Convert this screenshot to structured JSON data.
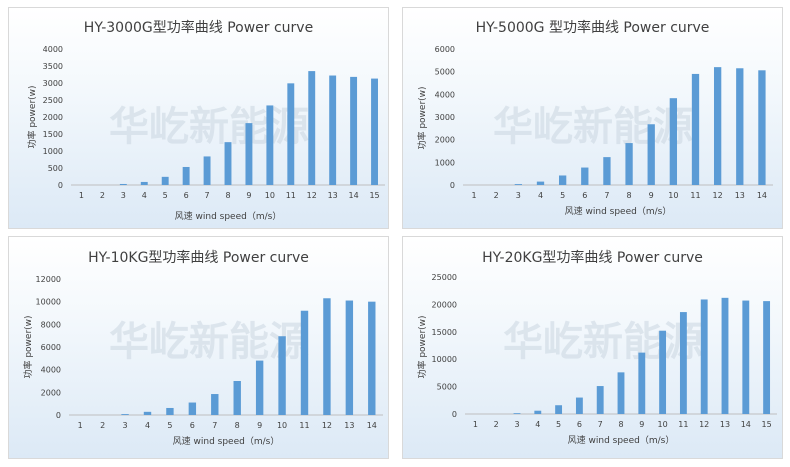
{
  "colors": {
    "bar": "#5b9bd5",
    "text": "#404040",
    "panel_border": "#d9d9d9"
  },
  "watermark": "华屹新能源",
  "chart_data": [
    {
      "type": "bar",
      "title": "HY-3000G型功率曲线 Power curve",
      "xlabel": "风速 wind speed（m/s）",
      "ylabel": "功率 power(w)",
      "categories": [
        "1",
        "2",
        "3",
        "4",
        "5",
        "6",
        "7",
        "8",
        "9",
        "10",
        "11",
        "12",
        "13",
        "14",
        "15"
      ],
      "values": [
        0,
        0,
        30,
        90,
        240,
        530,
        840,
        1260,
        1820,
        2340,
        2990,
        3350,
        3220,
        3180,
        3130
      ],
      "ylim": [
        0,
        4000
      ],
      "yticks": [
        "0",
        "500",
        "1000",
        "1500",
        "2000",
        "2500",
        "3000",
        "3500",
        "4000"
      ],
      "grid": false,
      "legend": "none"
    },
    {
      "type": "bar",
      "title": "HY-5000G 型功率曲线 Power curve",
      "xlabel": "风速 wind speed（m/s）",
      "ylabel": "功率 power(w)",
      "categories": [
        "1",
        "2",
        "3",
        "4",
        "5",
        "6",
        "7",
        "8",
        "9",
        "10",
        "11",
        "12",
        "13",
        "14"
      ],
      "values": [
        0,
        0,
        40,
        150,
        420,
        770,
        1230,
        1850,
        2680,
        3830,
        4900,
        5200,
        5150,
        5060
      ],
      "ylim": [
        0,
        6000
      ],
      "yticks": [
        "0",
        "1000",
        "2000",
        "3000",
        "4000",
        "5000",
        "6000"
      ],
      "grid": false,
      "legend": "none"
    },
    {
      "type": "bar",
      "title": "HY-10KG型功率曲线 Power curve",
      "xlabel": "风速 wind speed（m/s）",
      "ylabel": "功率 power(w)",
      "categories": [
        "1",
        "2",
        "3",
        "4",
        "5",
        "6",
        "7",
        "8",
        "9",
        "10",
        "11",
        "12",
        "13",
        "14"
      ],
      "values": [
        0,
        0,
        80,
        280,
        620,
        1100,
        1850,
        3000,
        4800,
        6950,
        9200,
        10300,
        10100,
        10000
      ],
      "ylim": [
        0,
        12000
      ],
      "yticks": [
        "0",
        "2000",
        "4000",
        "6000",
        "8000",
        "10000",
        "12000"
      ],
      "grid": false,
      "legend": "none"
    },
    {
      "type": "bar",
      "title": "HY-20KG型功率曲线 Power curve",
      "xlabel": "风速 wind speed（m/s）",
      "ylabel": "功率 power(w)",
      "categories": [
        "1",
        "2",
        "3",
        "4",
        "5",
        "6",
        "7",
        "8",
        "9",
        "10",
        "11",
        "12",
        "13",
        "14",
        "15"
      ],
      "values": [
        0,
        0,
        150,
        600,
        1600,
        3000,
        5100,
        7600,
        11200,
        15200,
        18600,
        20900,
        21200,
        20700,
        20600
      ],
      "ylim": [
        0,
        25000
      ],
      "yticks": [
        "0",
        "5000",
        "10000",
        "15000",
        "20000",
        "25000"
      ],
      "grid": false,
      "legend": "none"
    }
  ]
}
